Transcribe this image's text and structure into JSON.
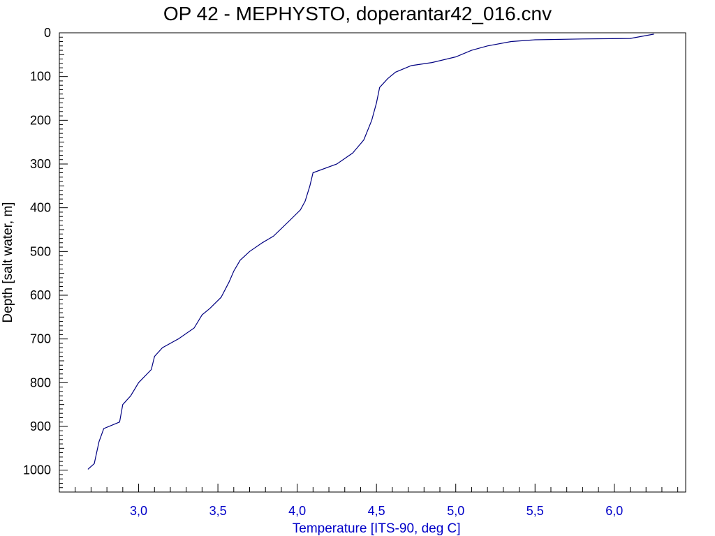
{
  "chart_data": {
    "type": "line",
    "title": "OP 42 - MEPHYSTO, doperantar42_016.cnv",
    "xlabel": "Temperature [ITS-90, deg C]",
    "ylabel": "Depth [salt water, m]",
    "xlim": [
      2.5,
      6.45
    ],
    "ylim": [
      1050,
      0
    ],
    "y_inverted": true,
    "grid": false,
    "x_ticks": [
      {
        "value": 3.0,
        "label": "3,0"
      },
      {
        "value": 3.5,
        "label": "3,5"
      },
      {
        "value": 4.0,
        "label": "4,0"
      },
      {
        "value": 4.5,
        "label": "4,5"
      },
      {
        "value": 5.0,
        "label": "5,0"
      },
      {
        "value": 5.5,
        "label": "5,5"
      },
      {
        "value": 6.0,
        "label": "6,0"
      }
    ],
    "y_ticks": [
      {
        "value": 0,
        "label": "0"
      },
      {
        "value": 100,
        "label": "100"
      },
      {
        "value": 200,
        "label": "200"
      },
      {
        "value": 300,
        "label": "300"
      },
      {
        "value": 400,
        "label": "400"
      },
      {
        "value": 500,
        "label": "500"
      },
      {
        "value": 600,
        "label": "600"
      },
      {
        "value": 700,
        "label": "700"
      },
      {
        "value": 800,
        "label": "800"
      },
      {
        "value": 900,
        "label": "900"
      },
      {
        "value": 1000,
        "label": "1000"
      }
    ],
    "series": [
      {
        "color": "#000080",
        "points": [
          {
            "x": 6.25,
            "y": 3
          },
          {
            "x": 6.1,
            "y": 13
          },
          {
            "x": 5.8,
            "y": 14
          },
          {
            "x": 5.5,
            "y": 16
          },
          {
            "x": 5.35,
            "y": 20
          },
          {
            "x": 5.2,
            "y": 30
          },
          {
            "x": 5.1,
            "y": 40
          },
          {
            "x": 5.0,
            "y": 55
          },
          {
            "x": 4.85,
            "y": 68
          },
          {
            "x": 4.72,
            "y": 75
          },
          {
            "x": 4.62,
            "y": 90
          },
          {
            "x": 4.57,
            "y": 105
          },
          {
            "x": 4.52,
            "y": 125
          },
          {
            "x": 4.5,
            "y": 160
          },
          {
            "x": 4.47,
            "y": 200
          },
          {
            "x": 4.42,
            "y": 245
          },
          {
            "x": 4.35,
            "y": 275
          },
          {
            "x": 4.25,
            "y": 300
          },
          {
            "x": 4.1,
            "y": 320
          },
          {
            "x": 4.08,
            "y": 350
          },
          {
            "x": 4.05,
            "y": 385
          },
          {
            "x": 4.02,
            "y": 405
          },
          {
            "x": 3.95,
            "y": 430
          },
          {
            "x": 3.85,
            "y": 465
          },
          {
            "x": 3.78,
            "y": 480
          },
          {
            "x": 3.7,
            "y": 500
          },
          {
            "x": 3.64,
            "y": 520
          },
          {
            "x": 3.6,
            "y": 545
          },
          {
            "x": 3.57,
            "y": 570
          },
          {
            "x": 3.52,
            "y": 605
          },
          {
            "x": 3.45,
            "y": 630
          },
          {
            "x": 3.4,
            "y": 645
          },
          {
            "x": 3.35,
            "y": 675
          },
          {
            "x": 3.25,
            "y": 700
          },
          {
            "x": 3.15,
            "y": 720
          },
          {
            "x": 3.1,
            "y": 740
          },
          {
            "x": 3.08,
            "y": 770
          },
          {
            "x": 3.0,
            "y": 800
          },
          {
            "x": 2.95,
            "y": 830
          },
          {
            "x": 2.9,
            "y": 850
          },
          {
            "x": 2.88,
            "y": 890
          },
          {
            "x": 2.78,
            "y": 905
          },
          {
            "x": 2.75,
            "y": 935
          },
          {
            "x": 2.72,
            "y": 985
          },
          {
            "x": 2.68,
            "y": 998
          }
        ]
      }
    ]
  }
}
